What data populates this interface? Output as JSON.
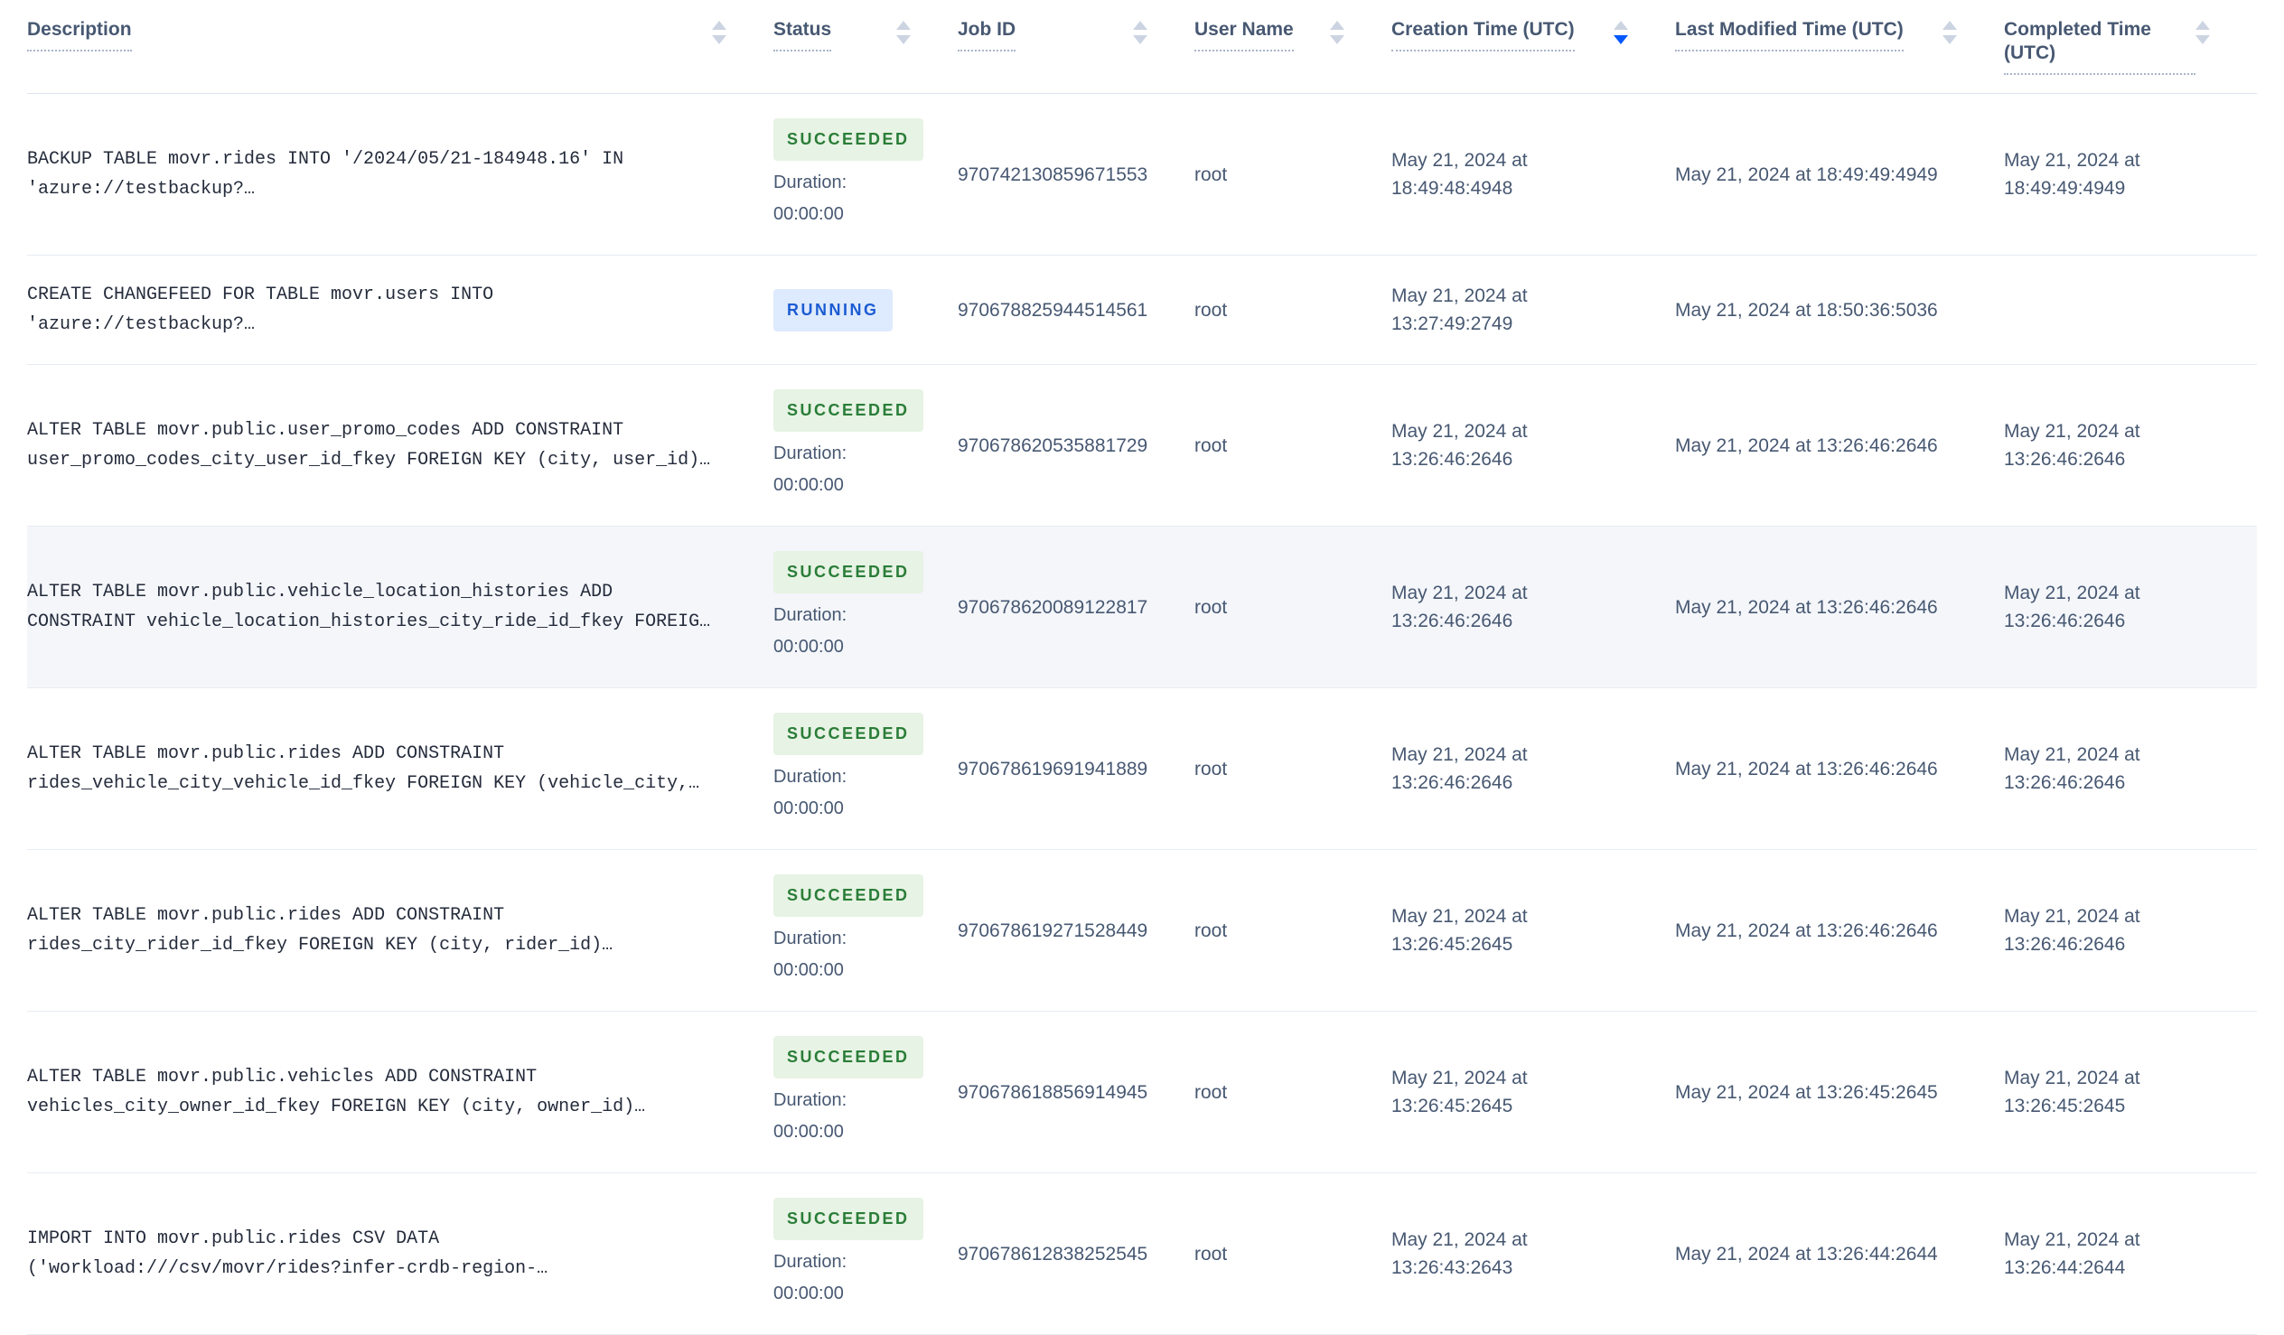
{
  "table": {
    "duration_label": "Duration:",
    "columns": [
      {
        "key": "description",
        "label": "Description",
        "sort": "none"
      },
      {
        "key": "status",
        "label": "Status",
        "sort": "none"
      },
      {
        "key": "jobid",
        "label": "Job ID",
        "sort": "none"
      },
      {
        "key": "user",
        "label": "User Name",
        "sort": "none"
      },
      {
        "key": "created",
        "label": "Creation Time (UTC)",
        "sort": "desc"
      },
      {
        "key": "modified",
        "label": "Last Modified Time (UTC)",
        "sort": "none"
      },
      {
        "key": "completed",
        "label": "Completed Time (UTC)",
        "sort": "none"
      }
    ],
    "rows": [
      {
        "description": "BACKUP TABLE movr.rides INTO '/2024/05/21-184948.16' IN 'azure://testbackup?…",
        "status": "SUCCEEDED",
        "duration": "00:00:00",
        "job_id": "970742130859671553",
        "user_name": "root",
        "creation_time": "May 21, 2024 at 18:49:48:4948",
        "last_modified_time": "May 21, 2024 at 18:49:49:4949",
        "completed_time": "May 21, 2024 at 18:49:49:4949",
        "highlighted": false
      },
      {
        "description": "CREATE CHANGEFEED FOR TABLE movr.users INTO 'azure://testbackup?…",
        "status": "RUNNING",
        "duration": "",
        "job_id": "970678825944514561",
        "user_name": "root",
        "creation_time": "May 21, 2024 at 13:27:49:2749",
        "last_modified_time": "May 21, 2024 at 18:50:36:5036",
        "completed_time": "",
        "highlighted": false
      },
      {
        "description": "ALTER TABLE movr.public.user_promo_codes ADD CONSTRAINT user_promo_codes_city_user_id_fkey FOREIGN KEY (city, user_id)…",
        "status": "SUCCEEDED",
        "duration": "00:00:00",
        "job_id": "970678620535881729",
        "user_name": "root",
        "creation_time": "May 21, 2024 at 13:26:46:2646",
        "last_modified_time": "May 21, 2024 at 13:26:46:2646",
        "completed_time": "May 21, 2024 at 13:26:46:2646",
        "highlighted": false
      },
      {
        "description": "ALTER TABLE movr.public.vehicle_location_histories ADD CONSTRAINT vehicle_location_histories_city_ride_id_fkey FOREIG…",
        "status": "SUCCEEDED",
        "duration": "00:00:00",
        "job_id": "970678620089122817",
        "user_name": "root",
        "creation_time": "May 21, 2024 at 13:26:46:2646",
        "last_modified_time": "May 21, 2024 at 13:26:46:2646",
        "completed_time": "May 21, 2024 at 13:26:46:2646",
        "highlighted": true
      },
      {
        "description": "ALTER TABLE movr.public.rides ADD CONSTRAINT rides_vehicle_city_vehicle_id_fkey FOREIGN KEY (vehicle_city,…",
        "status": "SUCCEEDED",
        "duration": "00:00:00",
        "job_id": "970678619691941889",
        "user_name": "root",
        "creation_time": "May 21, 2024 at 13:26:46:2646",
        "last_modified_time": "May 21, 2024 at 13:26:46:2646",
        "completed_time": "May 21, 2024 at 13:26:46:2646",
        "highlighted": false
      },
      {
        "description": "ALTER TABLE movr.public.rides ADD CONSTRAINT rides_city_rider_id_fkey FOREIGN KEY (city, rider_id)…",
        "status": "SUCCEEDED",
        "duration": "00:00:00",
        "job_id": "970678619271528449",
        "user_name": "root",
        "creation_time": "May 21, 2024 at 13:26:45:2645",
        "last_modified_time": "May 21, 2024 at 13:26:46:2646",
        "completed_time": "May 21, 2024 at 13:26:46:2646",
        "highlighted": false
      },
      {
        "description": "ALTER TABLE movr.public.vehicles ADD CONSTRAINT vehicles_city_owner_id_fkey FOREIGN KEY (city, owner_id)…",
        "status": "SUCCEEDED",
        "duration": "00:00:00",
        "job_id": "970678618856914945",
        "user_name": "root",
        "creation_time": "May 21, 2024 at 13:26:45:2645",
        "last_modified_time": "May 21, 2024 at 13:26:45:2645",
        "completed_time": "May 21, 2024 at 13:26:45:2645",
        "highlighted": false
      },
      {
        "description": "IMPORT INTO movr.public.rides CSV DATA ('workload:///csv/movr/rides?infer-crdb-region-…",
        "status": "SUCCEEDED",
        "duration": "00:00:00",
        "job_id": "970678612838252545",
        "user_name": "root",
        "creation_time": "May 21, 2024 at 13:26:43:2643",
        "last_modified_time": "May 21, 2024 at 13:26:44:2644",
        "completed_time": "May 21, 2024 at 13:26:44:2644",
        "highlighted": false
      }
    ],
    "colors": {
      "succeeded_text": "#2a7d38",
      "succeeded_bg": "#e7f3e4",
      "running_text": "#1c5cd3",
      "running_bg": "#deeafd",
      "active_sort": "#0357fe",
      "row_highlight": "#f4f6fa",
      "separator": "#e7ecf3",
      "header_text": "#475872"
    }
  }
}
